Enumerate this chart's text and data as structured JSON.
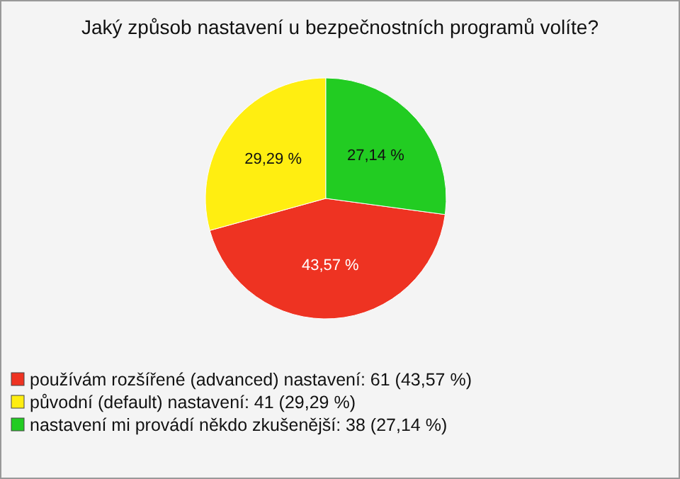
{
  "chart_data": {
    "type": "pie",
    "title": "Jaký způsob nastavení u bezpečnostních programů volíte?",
    "categories": [
      "používám rozšířené (advanced) nastavení: 61 (43,57 %)",
      "původní (default) nastavení: 41 (29,29 %)",
      "nastavení mi provádí někdo zkušenější: 38 (27,14 %)"
    ],
    "values": [
      43.57,
      29.29,
      27.14
    ],
    "value_labels": [
      "43,57 %",
      "29,29 %",
      "27,14 %"
    ],
    "colors": [
      "#ee3322",
      "#ffee11",
      "#22cc22"
    ],
    "legend": "bottom left"
  }
}
